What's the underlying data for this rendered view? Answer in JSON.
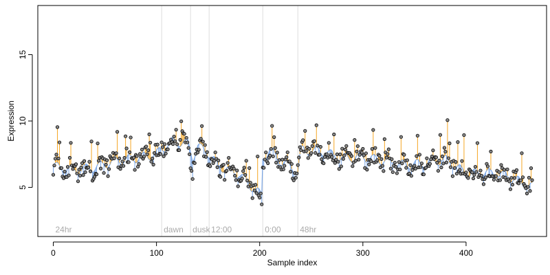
{
  "chart_data": {
    "type": "scatter",
    "xlabel": "Sample index",
    "ylabel": "Expression",
    "xlim": [
      -15,
      478
    ],
    "ylim": [
      1.3,
      18.7
    ],
    "x_ticks": [
      0,
      100,
      200,
      300,
      400
    ],
    "y_ticks": [
      5,
      10,
      15
    ],
    "grid": false,
    "legend": "none",
    "regions": [
      {
        "x": 0,
        "label": "24hr"
      },
      {
        "x": 105,
        "label": "dawn"
      },
      {
        "x": 133,
        "label": "dusk"
      },
      {
        "x": 151,
        "label": "12:00"
      },
      {
        "x": 203,
        "label": "0:00"
      },
      {
        "x": 237,
        "label": "48hr"
      }
    ],
    "colors": {
      "fitted": "#7aa6e6",
      "residual_positive": "#f5a623",
      "residual_negative": "#7aa6e6",
      "boundary": "#dddddd",
      "region_label": "#aaaaaa",
      "point_fill": "#888888",
      "point_stroke": "#000000"
    },
    "n_samples": 465,
    "anchors": [
      [
        0,
        6.6
      ],
      [
        20,
        6.3
      ],
      [
        40,
        6.5
      ],
      [
        60,
        7.0
      ],
      [
        80,
        7.2
      ],
      [
        100,
        7.5
      ],
      [
        105,
        7.9
      ],
      [
        115,
        8.4
      ],
      [
        130,
        8.4
      ],
      [
        135,
        7.2
      ],
      [
        140,
        8.1
      ],
      [
        150,
        7.6
      ],
      [
        160,
        6.6
      ],
      [
        180,
        6.0
      ],
      [
        190,
        5.2
      ],
      [
        200,
        4.5
      ],
      [
        202,
        4.3
      ],
      [
        203,
        7.2
      ],
      [
        210,
        7.8
      ],
      [
        220,
        7.0
      ],
      [
        237,
        6.2
      ],
      [
        240,
        7.8
      ],
      [
        260,
        7.7
      ],
      [
        280,
        7.2
      ],
      [
        300,
        7.3
      ],
      [
        320,
        7.0
      ],
      [
        340,
        6.7
      ],
      [
        360,
        6.8
      ],
      [
        380,
        7.1
      ],
      [
        390,
        6.6
      ],
      [
        400,
        6.0
      ],
      [
        420,
        6.1
      ],
      [
        440,
        5.9
      ],
      [
        455,
        5.3
      ],
      [
        465,
        5.0
      ]
    ]
  }
}
